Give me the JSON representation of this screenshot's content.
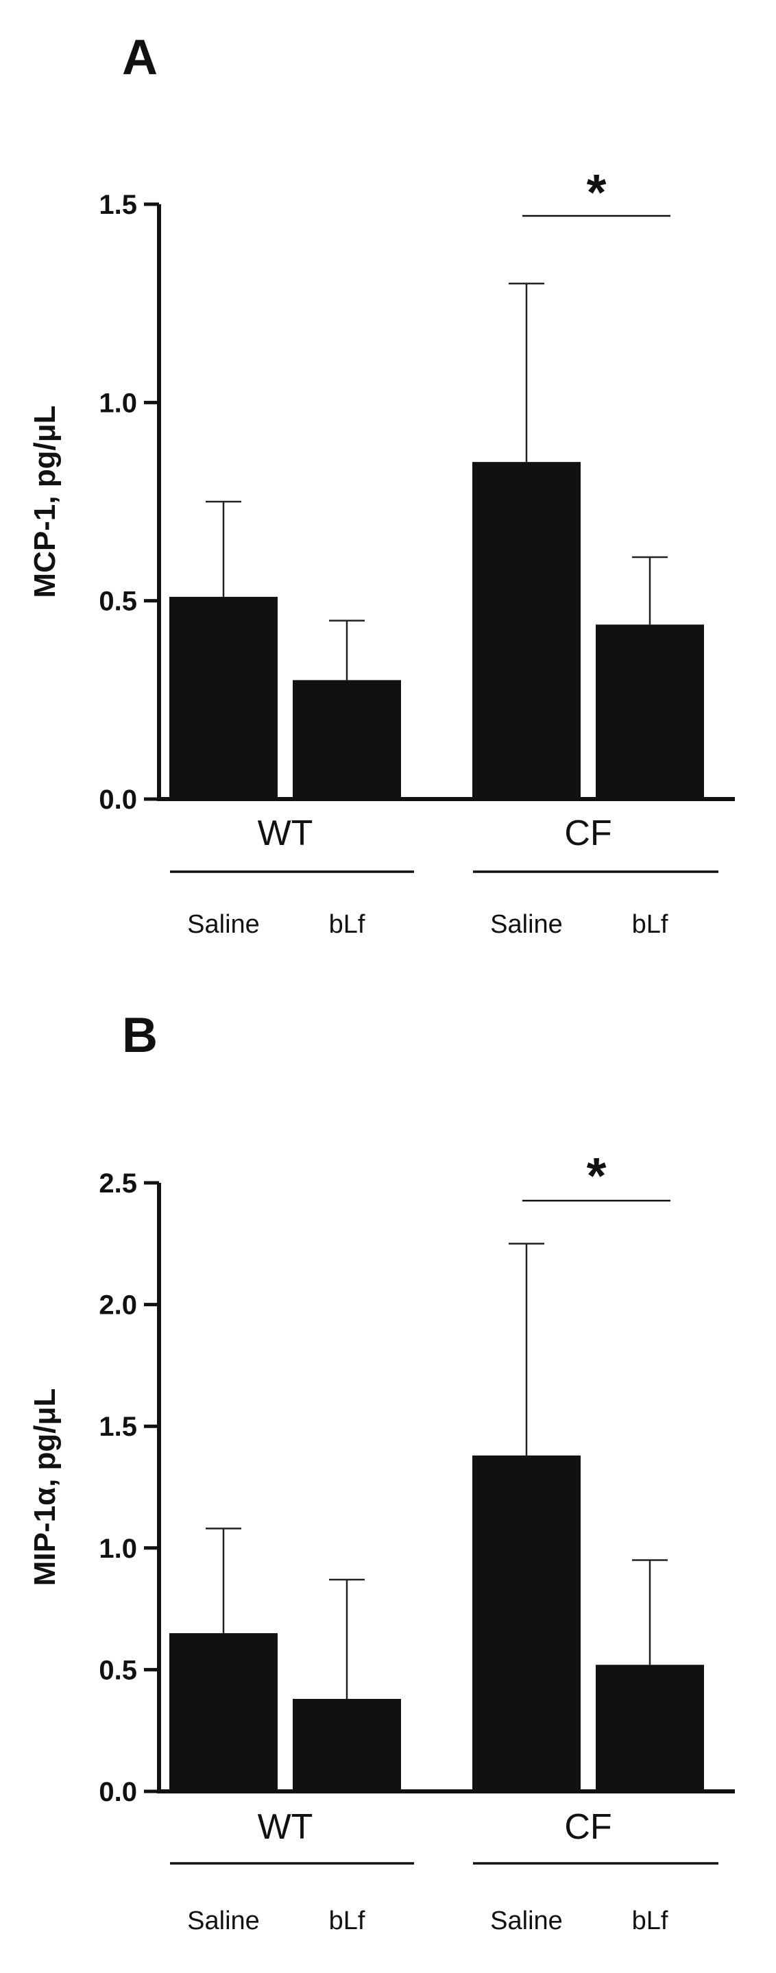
{
  "chart_data": [
    {
      "panel": "A",
      "type": "bar",
      "ylabel": "MCP-1, pg/μL",
      "ylim": [
        0,
        1.5
      ],
      "yticks": [
        "0.0",
        "0.5",
        "1.0",
        "1.5"
      ],
      "groups": [
        "WT",
        "CF"
      ],
      "categories": [
        "Saline",
        "bLf",
        "Saline",
        "bLf"
      ],
      "values": [
        0.51,
        0.3,
        0.85,
        0.44
      ],
      "errors": [
        0.24,
        0.15,
        0.45,
        0.17
      ],
      "significance": "*"
    },
    {
      "panel": "B",
      "type": "bar",
      "ylabel": "MIP-1α, pg/μL",
      "ylim": [
        0,
        2.5
      ],
      "yticks": [
        "0.0",
        "0.5",
        "1.0",
        "1.5",
        "2.0",
        "2.5"
      ],
      "groups": [
        "WT",
        "CF"
      ],
      "categories": [
        "Saline",
        "bLf",
        "Saline",
        "bLf"
      ],
      "values": [
        0.65,
        0.38,
        1.38,
        0.52
      ],
      "errors": [
        0.43,
        0.49,
        0.87,
        0.43
      ],
      "significance": "*"
    }
  ]
}
